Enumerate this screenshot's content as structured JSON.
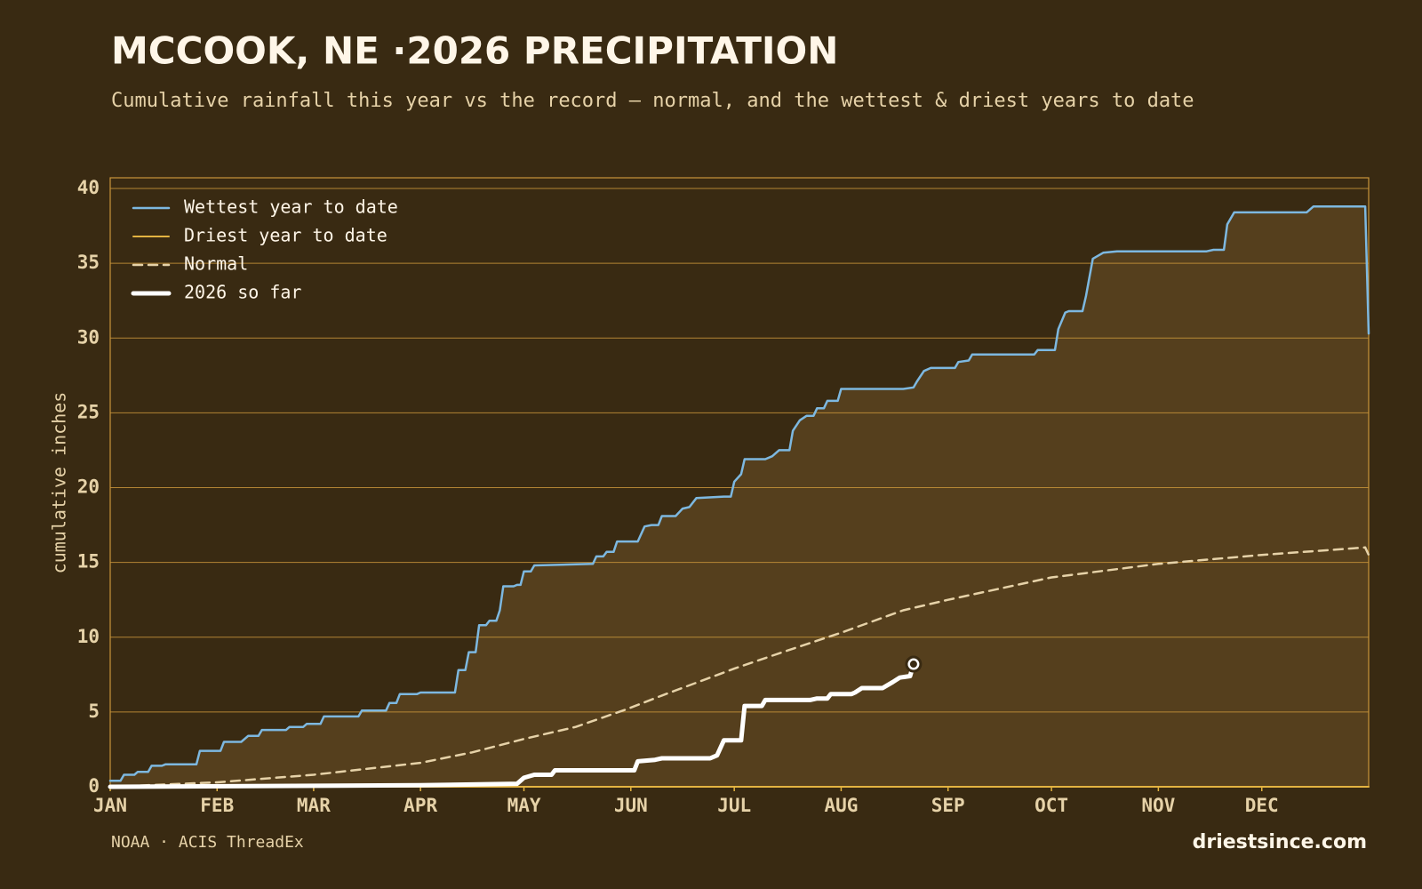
{
  "chart_data": {
    "type": "line",
    "title": "MCCOOK, NE ·2026 PRECIPITATION",
    "subtitle": "Cumulative rainfall this year vs the record — normal, and the wettest & driest years to date",
    "ylabel": "cumulative inches",
    "source": "NOAA · ACIS ThreadEx",
    "brand": "driestsince.com",
    "xlim": [
      0,
      365
    ],
    "xticks": [
      {
        "value": 0,
        "label": "JAN"
      },
      {
        "value": 31,
        "label": "FEB"
      },
      {
        "value": 59,
        "label": "MAR"
      },
      {
        "value": 90,
        "label": "APR"
      },
      {
        "value": 120,
        "label": "MAY"
      },
      {
        "value": 151,
        "label": "JUN"
      },
      {
        "value": 181,
        "label": "JUL"
      },
      {
        "value": 212,
        "label": "AUG"
      },
      {
        "value": 243,
        "label": "SEP"
      },
      {
        "value": 273,
        "label": "OCT"
      },
      {
        "value": 304,
        "label": "NOV"
      },
      {
        "value": 334,
        "label": "DEC"
      }
    ],
    "ylim": [
      0,
      40
    ],
    "yticks": [
      0,
      5,
      10,
      15,
      20,
      25,
      30,
      35,
      40
    ],
    "grid": true,
    "legend": "upper left",
    "series": [
      {
        "name": "Wettest year to date",
        "color": "#7db8e0",
        "fill": "#553f1d",
        "width": 2.5,
        "x": [
          0,
          3,
          4,
          7,
          8,
          11,
          12,
          15,
          16,
          25,
          26,
          32,
          33,
          38,
          40,
          43,
          44,
          51,
          52,
          56,
          57,
          61,
          62,
          72,
          73,
          80,
          81,
          83,
          84,
          89,
          90,
          100,
          101,
          103,
          104,
          106,
          107,
          109,
          110,
          112,
          113,
          114,
          117,
          118,
          119,
          120,
          122,
          123,
          140,
          141,
          143,
          144,
          146,
          147,
          153,
          155,
          157,
          159,
          160,
          164,
          166,
          168,
          170,
          178,
          180,
          181,
          183,
          184,
          190,
          192,
          194,
          197,
          198,
          200,
          202,
          204,
          205,
          207,
          208,
          211,
          212,
          230,
          233,
          234,
          236,
          238,
          245,
          246,
          249,
          250,
          268,
          269,
          274,
          275,
          277,
          278,
          282,
          283,
          285,
          288,
          292,
          318,
          320,
          323,
          324,
          326,
          347,
          349,
          364,
          365
        ],
        "values": [
          0.4,
          0.4,
          0.8,
          0.8,
          1.0,
          1.0,
          1.4,
          1.4,
          1.5,
          1.5,
          2.4,
          2.4,
          3.0,
          3.0,
          3.4,
          3.4,
          3.8,
          3.8,
          4.0,
          4.0,
          4.2,
          4.2,
          4.7,
          4.7,
          5.1,
          5.1,
          5.6,
          5.6,
          6.2,
          6.2,
          6.3,
          6.3,
          7.8,
          7.8,
          9.0,
          9.0,
          10.8,
          10.8,
          11.1,
          11.1,
          11.8,
          13.4,
          13.4,
          13.5,
          13.5,
          14.4,
          14.4,
          14.8,
          14.9,
          15.4,
          15.4,
          15.7,
          15.7,
          16.4,
          16.4,
          17.4,
          17.5,
          17.5,
          18.1,
          18.1,
          18.6,
          18.7,
          19.3,
          19.4,
          19.4,
          20.4,
          20.9,
          21.9,
          21.9,
          22.1,
          22.5,
          22.5,
          23.8,
          24.5,
          24.8,
          24.8,
          25.3,
          25.3,
          25.8,
          25.8,
          26.6,
          26.6,
          26.7,
          27.1,
          27.8,
          28.0,
          28.0,
          28.4,
          28.5,
          28.9,
          28.9,
          29.2,
          29.2,
          30.6,
          31.7,
          31.8,
          31.8,
          32.8,
          35.3,
          35.7,
          35.8,
          35.8,
          35.9,
          35.9,
          37.6,
          38.4,
          38.4,
          38.8,
          38.8,
          30.3
        ]
      },
      {
        "name": "Driest year to date",
        "color": "#e3b341",
        "width": 2,
        "x": [
          0,
          365
        ],
        "values": [
          0,
          0
        ]
      },
      {
        "name": "Normal",
        "color": "#e6d2a8",
        "width": 2.5,
        "dashed": true,
        "x": [
          0,
          31,
          59,
          90,
          105,
          120,
          135,
          150,
          160,
          181,
          195,
          212,
          230,
          243,
          273,
          304,
          334,
          364,
          365
        ],
        "values": [
          0,
          0.3,
          0.8,
          1.6,
          2.3,
          3.2,
          4.0,
          5.2,
          6.1,
          7.9,
          9.0,
          10.3,
          11.8,
          12.5,
          14.0,
          14.9,
          15.5,
          16.0,
          15.5
        ]
      },
      {
        "name": "2026 so far",
        "color": "#ffffff",
        "width": 5,
        "end_marker": true,
        "x": [
          0,
          90,
          118,
          120,
          123,
          128,
          129,
          152,
          153,
          158,
          160,
          174,
          176,
          178,
          183,
          184,
          189,
          190,
          203,
          205,
          208,
          209,
          215,
          216,
          218,
          224,
          227,
          229,
          232,
          233
        ],
        "values": [
          0,
          0.1,
          0.2,
          0.6,
          0.8,
          0.8,
          1.1,
          1.1,
          1.7,
          1.8,
          1.9,
          1.9,
          2.1,
          3.1,
          3.1,
          5.4,
          5.4,
          5.8,
          5.8,
          5.9,
          5.9,
          6.2,
          6.2,
          6.3,
          6.6,
          6.6,
          7.0,
          7.3,
          7.4,
          8.2
        ]
      }
    ]
  }
}
